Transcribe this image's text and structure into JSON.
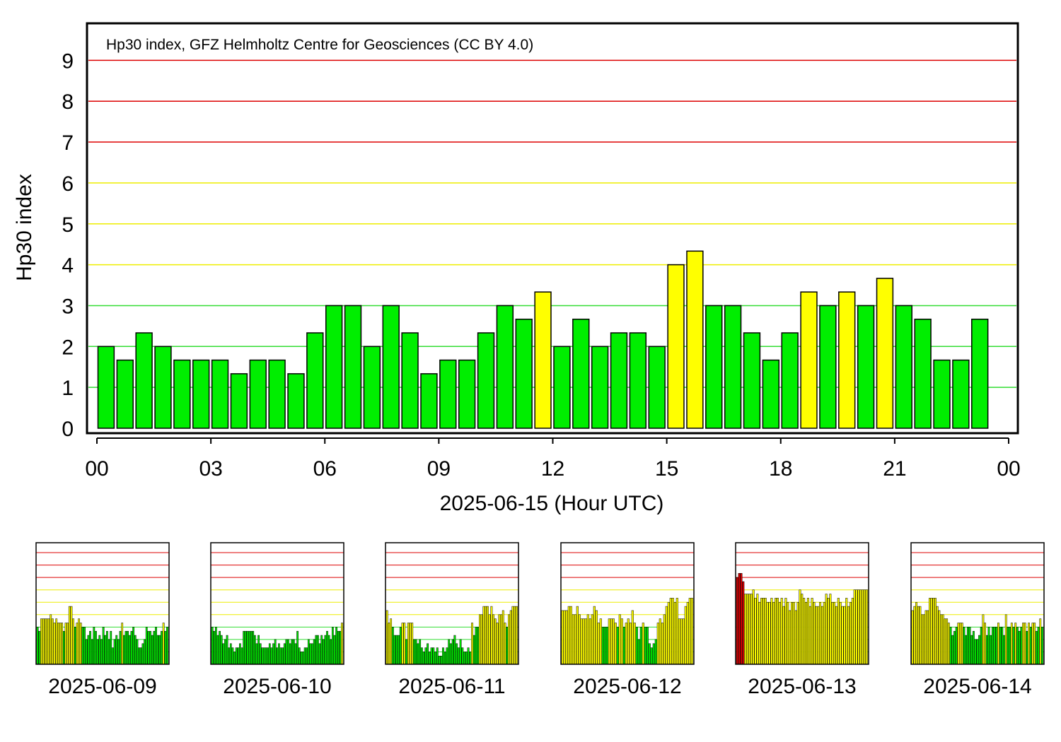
{
  "colors": {
    "quiet": "#00ee00",
    "active": "#ffff00",
    "storm": "#dd0000",
    "grid_green": "#33dd33",
    "grid_yellow": "#eeee00",
    "grid_red": "#dd0000"
  },
  "chart_data": [
    {
      "type": "bar",
      "annotation": "Hp30 index, GFZ Helmholtz Centre for Geosciences (CC BY 4.0)",
      "ylabel": "Hp30 index",
      "xlabel": "2025-06-15 (Hour UTC)",
      "ylim": [
        0,
        9
      ],
      "yticks": [
        "0",
        "1",
        "2",
        "3",
        "4",
        "5",
        "6",
        "7",
        "8",
        "9"
      ],
      "xticks": [
        "00",
        "03",
        "06",
        "09",
        "12",
        "15",
        "18",
        "21",
        "00"
      ],
      "grid": true,
      "values": [
        2.0,
        1.667,
        2.333,
        2.0,
        1.667,
        1.667,
        1.667,
        1.333,
        1.667,
        1.667,
        1.333,
        2.333,
        3.0,
        3.0,
        2.0,
        3.0,
        2.333,
        1.333,
        1.667,
        1.667,
        2.333,
        3.0,
        2.667,
        3.333,
        2.0,
        2.667,
        2.0,
        2.333,
        2.333,
        2.0,
        4.0,
        4.333,
        3.0,
        3.0,
        2.333,
        1.667,
        2.333,
        3.333,
        3.0,
        3.333,
        3.0,
        3.667,
        3.0,
        2.667,
        1.667,
        1.667,
        2.667
      ]
    },
    {
      "type": "bar",
      "date": "2025-06-09",
      "ylim": [
        0,
        9
      ],
      "values": [
        3.0,
        2.667,
        3.667,
        3.667,
        3.667,
        3.667,
        3.667,
        4.0,
        3.667,
        3.333,
        3.667,
        3.333,
        3.333,
        3.333,
        2.667,
        3.333,
        3.333,
        4.667,
        4.667,
        3.667,
        3.0,
        3.333,
        3.667,
        3.333,
        3.0,
        3.0,
        2.0,
        2.333,
        2.667,
        2.0,
        3.0,
        2.667,
        2.0,
        2.333,
        2.0,
        3.0,
        2.333,
        2.667,
        2.0,
        2.667,
        1.333,
        2.0,
        2.333,
        2.0,
        2.667,
        3.333,
        2.333,
        2.667,
        2.667,
        2.333,
        2.667,
        3.0,
        2.333,
        2.0,
        1.333,
        1.333,
        1.667,
        2.0,
        3.0,
        2.667,
        2.667,
        2.333,
        2.667,
        3.0,
        2.333,
        2.333,
        2.667,
        3.333,
        2.667,
        3.0
      ]
    },
    {
      "type": "bar",
      "date": "2025-06-10",
      "ylim": [
        0,
        9
      ],
      "values": [
        3.0,
        2.667,
        3.0,
        2.333,
        2.667,
        2.333,
        1.667,
        2.0,
        2.333,
        1.333,
        1.667,
        1.333,
        1.0,
        1.333,
        1.333,
        1.667,
        1.333,
        2.667,
        2.667,
        2.667,
        2.667,
        2.667,
        2.667,
        2.333,
        1.667,
        2.333,
        1.667,
        1.333,
        1.333,
        1.333,
        1.333,
        1.667,
        1.333,
        1.667,
        2.0,
        1.333,
        1.667,
        1.333,
        1.333,
        1.667,
        2.0,
        2.0,
        1.667,
        2.0,
        2.0,
        1.667,
        2.667,
        1.333,
        1.0,
        1.0,
        1.333,
        1.333,
        2.0,
        1.667,
        1.667,
        2.0,
        2.333,
        2.333,
        1.667,
        2.333,
        2.0,
        2.333,
        2.667,
        2.333,
        2.0,
        3.0,
        2.333,
        3.0,
        2.667,
        2.667,
        3.333
      ]
    },
    {
      "type": "bar",
      "date": "2025-06-11",
      "ylim": [
        0,
        9
      ],
      "values": [
        4.333,
        3.333,
        3.667,
        3.0,
        2.333,
        2.333,
        2.333,
        3.0,
        3.333,
        3.333,
        2.0,
        3.333,
        3.333,
        3.333,
        2.0,
        2.0,
        1.667,
        2.0,
        1.333,
        1.0,
        1.333,
        1.667,
        1.0,
        1.333,
        1.333,
        1.0,
        1.333,
        0.667,
        0.667,
        1.333,
        1.0,
        1.333,
        2.0,
        1.667,
        2.0,
        2.333,
        1.667,
        1.333,
        2.0,
        1.333,
        1.0,
        1.0,
        1.333,
        1.0,
        3.333,
        2.333,
        3.0,
        3.0,
        4.0,
        4.0,
        4.667,
        4.667,
        4.667,
        4.0,
        4.667,
        4.0,
        3.667,
        3.333,
        4.0,
        4.0,
        4.333,
        3.333,
        3.0,
        4.0,
        4.333,
        4.667,
        4.667,
        4.667
      ]
    },
    {
      "type": "bar",
      "date": "2025-06-12",
      "ylim": [
        0,
        9
      ],
      "values": [
        4.333,
        4.333,
        4.333,
        4.667,
        4.667,
        4.0,
        4.0,
        4.667,
        4.0,
        3.667,
        3.667,
        3.667,
        4.0,
        3.667,
        4.0,
        4.667,
        4.333,
        3.333,
        3.667,
        3.0,
        3.0,
        3.0,
        3.667,
        3.667,
        3.667,
        3.333,
        3.0,
        4.0,
        3.667,
        3.0,
        3.333,
        3.667,
        3.333,
        4.333,
        3.333,
        3.0,
        2.0,
        3.0,
        3.333,
        3.0,
        3.0,
        1.667,
        1.333,
        1.667,
        2.0,
        3.333,
        3.667,
        3.333,
        4.0,
        4.667,
        5.0,
        5.333,
        5.333,
        5.0,
        5.333,
        3.667,
        3.667,
        3.667,
        4.667,
        5.0,
        5.333,
        5.333
      ]
    },
    {
      "type": "bar",
      "date": "2025-06-13",
      "ylim": [
        0,
        9
      ],
      "values": [
        7.0,
        7.333,
        7.333,
        6.667,
        5.667,
        5.667,
        5.667,
        5.667,
        6.0,
        5.333,
        5.667,
        5.0,
        5.333,
        5.333,
        5.333,
        5.0,
        5.0,
        5.333,
        5.0,
        5.333,
        5.333,
        5.0,
        5.333,
        4.667,
        5.333,
        5.0,
        4.333,
        5.0,
        5.0,
        4.333,
        5.0,
        6.0,
        5.667,
        5.333,
        5.0,
        5.333,
        4.667,
        5.333,
        5.0,
        4.667,
        4.667,
        5.0,
        4.667,
        5.0,
        5.667,
        5.333,
        5.667,
        5.0,
        5.0,
        4.667,
        5.333,
        5.0,
        4.667,
        4.667,
        5.333,
        4.667,
        5.0,
        5.333,
        6.0,
        6.0,
        6.0,
        6.0,
        6.0,
        6.0,
        6.0
      ]
    },
    {
      "type": "bar",
      "date": "2025-06-14",
      "ylim": [
        0,
        9
      ],
      "values": [
        4.333,
        4.667,
        5.0,
        4.667,
        4.667,
        4.0,
        4.0,
        4.333,
        4.333,
        5.333,
        5.333,
        5.333,
        5.333,
        4.667,
        4.333,
        4.0,
        4.0,
        3.667,
        3.667,
        3.333,
        3.0,
        2.333,
        2.667,
        3.0,
        3.333,
        3.333,
        3.333,
        3.0,
        2.333,
        3.0,
        3.0,
        2.333,
        2.667,
        2.0,
        2.0,
        2.333,
        3.0,
        4.0,
        3.333,
        2.333,
        3.0,
        2.333,
        3.0,
        3.0,
        3.0,
        3.333,
        3.0,
        3.0,
        2.333,
        4.0,
        3.0,
        3.0,
        3.333,
        3.0,
        3.333,
        3.0,
        2.667,
        3.0,
        3.333,
        3.333,
        2.667,
        3.333,
        3.0,
        3.333,
        3.333,
        2.667,
        3.0,
        3.667,
        3.0
      ]
    }
  ]
}
